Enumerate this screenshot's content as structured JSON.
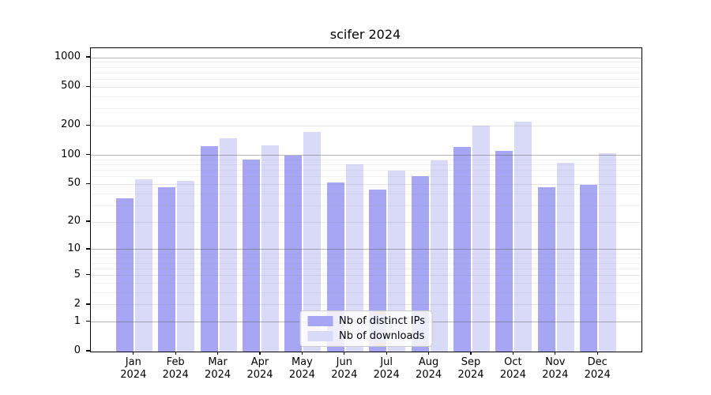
{
  "chart_data": {
    "type": "bar",
    "title": "scifer 2024",
    "categories": [
      "Jan",
      "Feb",
      "Mar",
      "Apr",
      "May",
      "Jun",
      "Jul",
      "Aug",
      "Sep",
      "Oct",
      "Nov",
      "Dec"
    ],
    "year_label": "2024",
    "series": [
      {
        "name": "Nb of distinct IPs",
        "color": "#a6a6f5",
        "values": [
          36,
          47,
          123,
          90,
          100,
          52,
          44,
          61,
          121,
          111,
          47,
          49
        ]
      },
      {
        "name": "Nb of downloads",
        "color": "#d9d9f8",
        "values": [
          56,
          54,
          149,
          126,
          175,
          81,
          69,
          89,
          200,
          220,
          84,
          104
        ]
      }
    ],
    "yscale": "log10(1+x)",
    "ymax_axis": 1250,
    "yticks": [
      0,
      1,
      2,
      5,
      10,
      20,
      50,
      100,
      200,
      500,
      1000
    ],
    "ytick_labels": [
      "0",
      "1",
      "2",
      "5",
      "10",
      "20",
      "50",
      "100",
      "200",
      "500",
      "1000"
    ],
    "decade_gridlines": [
      1,
      10,
      100,
      1000
    ],
    "minor_gridlines": [
      3,
      4,
      6,
      7,
      8,
      9,
      30,
      40,
      60,
      70,
      80,
      90,
      300,
      400,
      600,
      700,
      800,
      900
    ],
    "grid": true,
    "legend_position": "lower center"
  }
}
